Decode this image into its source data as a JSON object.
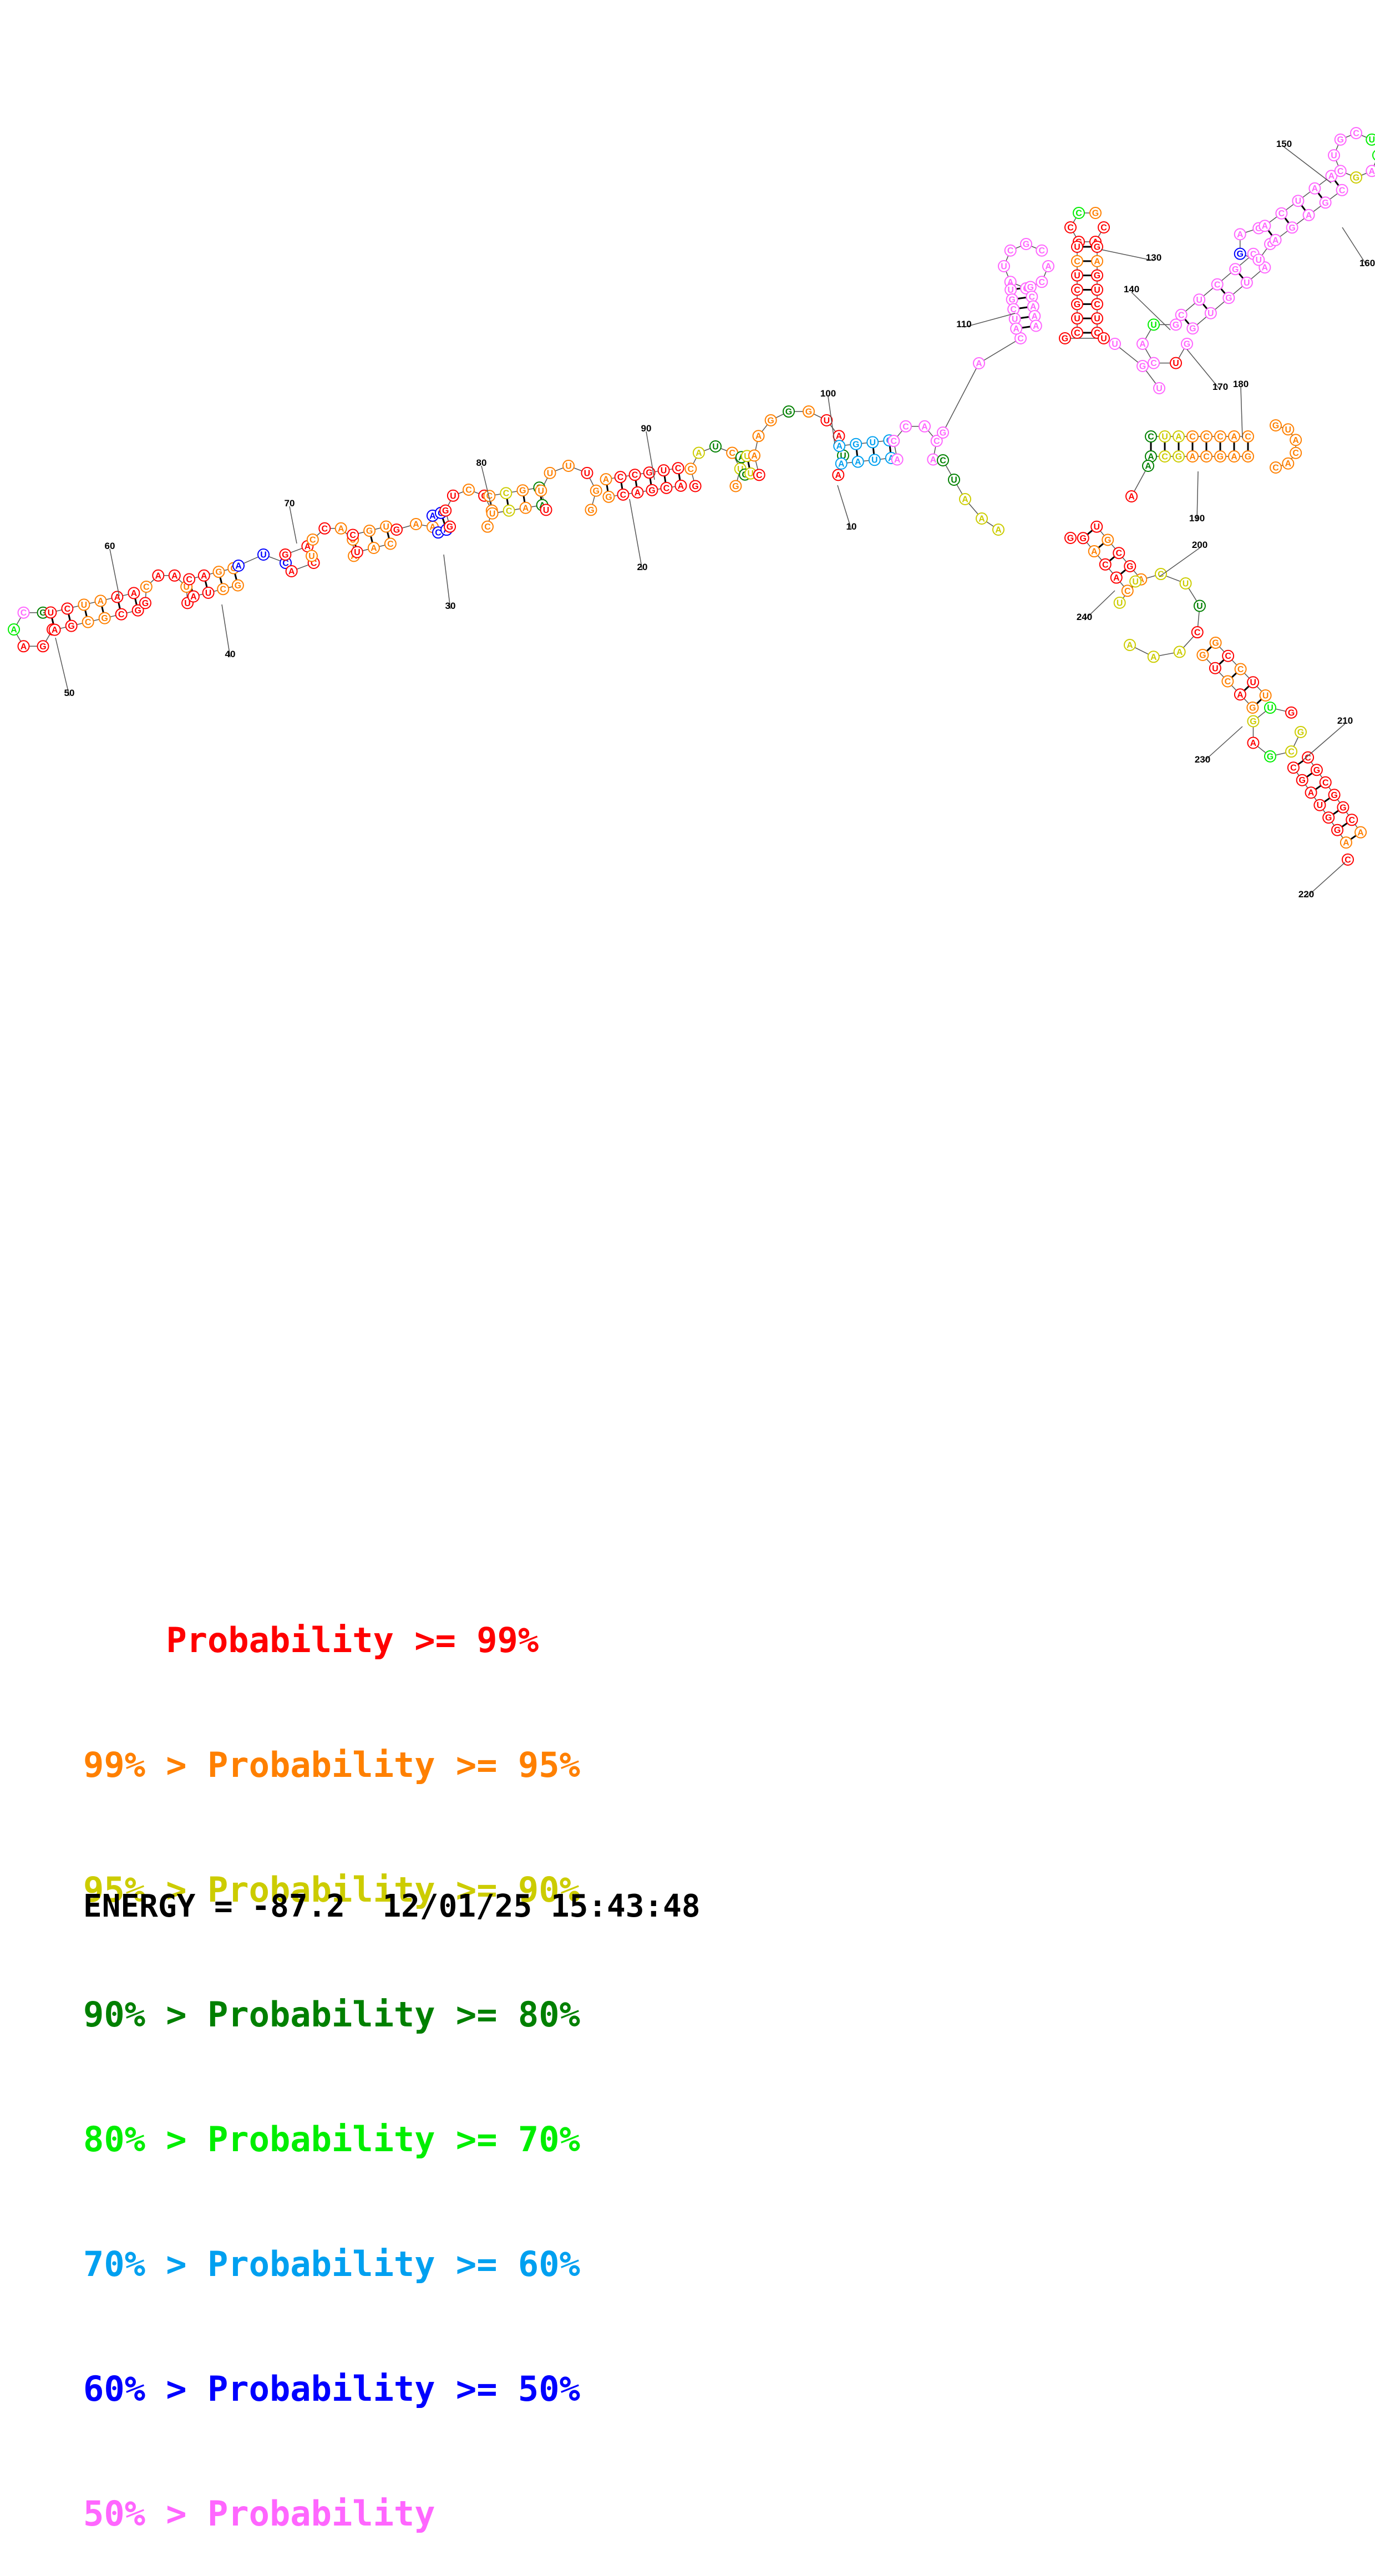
{
  "colors": {
    "p99": "#ff0000",
    "p95": "#ff8000",
    "p90": "#cccc00",
    "p80": "#008000",
    "p70": "#00ee00",
    "p60": "#00a0f0",
    "p50": "#0000ff",
    "plow": "#ff66ff"
  },
  "legend": [
    {
      "prefix": "    ",
      "mid": "Probability",
      "suffix": " >= 99%",
      "color": "#ff0000"
    },
    {
      "prefix": "99% > ",
      "mid": "Probability",
      "suffix": " >= 95%",
      "color": "#ff8000"
    },
    {
      "prefix": "95% > ",
      "mid": "Probability",
      "suffix": " >= 90%",
      "color": "#cccc00"
    },
    {
      "prefix": "90% > ",
      "mid": "Probability",
      "suffix": " >= 80%",
      "color": "#008000"
    },
    {
      "prefix": "80% > ",
      "mid": "Probability",
      "suffix": " >= 70%",
      "color": "#00ee00"
    },
    {
      "prefix": "70% > ",
      "mid": "Probability",
      "suffix": " >= 60%",
      "color": "#00a0f0"
    },
    {
      "prefix": "60% > ",
      "mid": "Probability",
      "suffix": " >= 50%",
      "color": "#0000ff"
    },
    {
      "prefix": "50% > ",
      "mid": "Probability",
      "suffix": "",
      "color": "#ff66ff"
    }
  ],
  "footer": {
    "energy": "ENERGY = -87.2",
    "timestamp": "12/01/25 15:43:48"
  },
  "position_labels": [
    "10",
    "20",
    "30",
    "40",
    "50",
    "60",
    "70",
    "80",
    "90",
    "100",
    "110",
    "130",
    "140",
    "150",
    "160",
    "170",
    "180",
    "190",
    "200",
    "210",
    "220",
    "230",
    "240"
  ]
}
